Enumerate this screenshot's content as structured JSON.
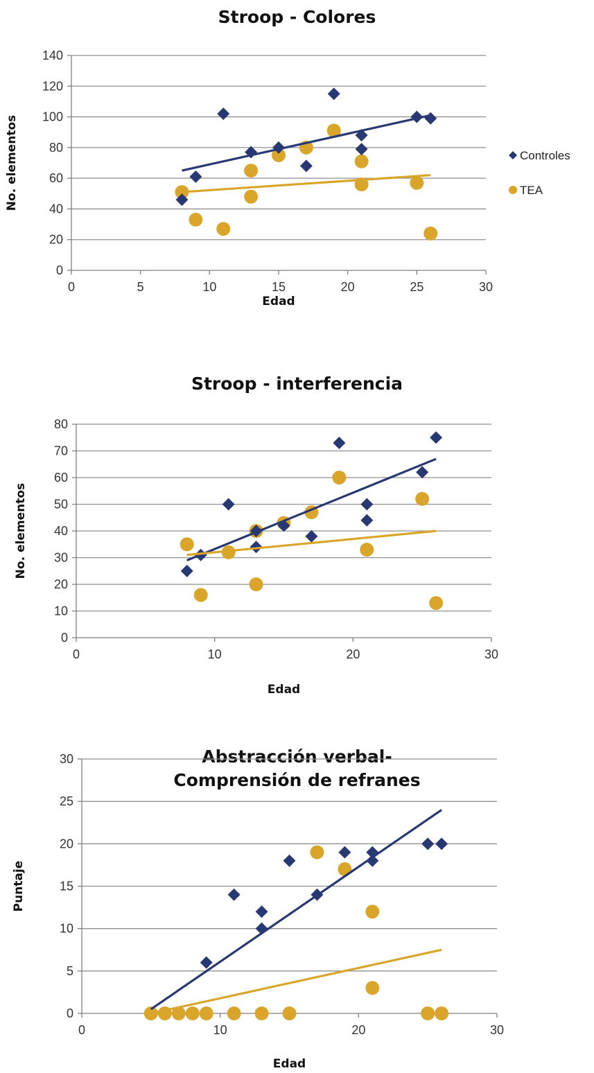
{
  "colors": {
    "controles": "#283872",
    "tea": "#D9A52A",
    "grid": "#8f8f8f"
  },
  "chart_data": [
    {
      "type": "scatter",
      "title": "Stroop - Colores",
      "xlabel": "Edad",
      "ylabel": "No. elementos",
      "xlim": [
        0,
        30
      ],
      "ylim": [
        0,
        140
      ],
      "xticks": [
        0,
        5,
        10,
        15,
        20,
        25,
        30
      ],
      "yticks": [
        0,
        20,
        40,
        60,
        80,
        100,
        120,
        140
      ],
      "grid": "horizontal",
      "legend": {
        "placement": "right",
        "entries": [
          "Controles",
          "TEA"
        ]
      },
      "series": [
        {
          "name": "Controles",
          "marker": "diamond",
          "points": [
            [
              8,
              46
            ],
            [
              9,
              61
            ],
            [
              11,
              102
            ],
            [
              13,
              77
            ],
            [
              15,
              80
            ],
            [
              17,
              68
            ],
            [
              19,
              115
            ],
            [
              21,
              88
            ],
            [
              21,
              79
            ],
            [
              25,
              100
            ],
            [
              26,
              99
            ]
          ],
          "trendline": [
            [
              8,
              65
            ],
            [
              26,
              101
            ]
          ]
        },
        {
          "name": "TEA",
          "marker": "circle",
          "points": [
            [
              8,
              51
            ],
            [
              9,
              33
            ],
            [
              11,
              27
            ],
            [
              13,
              65
            ],
            [
              13,
              48
            ],
            [
              15,
              75
            ],
            [
              17,
              80
            ],
            [
              19,
              91
            ],
            [
              21,
              71
            ],
            [
              21,
              56
            ],
            [
              25,
              57
            ],
            [
              26,
              24
            ]
          ],
          "trendline": [
            [
              8,
              51
            ],
            [
              26,
              62
            ]
          ]
        }
      ]
    },
    {
      "type": "scatter",
      "title": "Stroop - interferencia",
      "xlabel": "Edad",
      "ylabel": "No. elementos",
      "xlim": [
        0,
        30
      ],
      "ylim": [
        0,
        80
      ],
      "xticks": [
        0,
        10,
        20,
        30
      ],
      "yticks": [
        0,
        10,
        20,
        30,
        40,
        50,
        60,
        70,
        80
      ],
      "grid": "horizontal",
      "series": [
        {
          "name": "Controles",
          "marker": "diamond",
          "points": [
            [
              8,
              25
            ],
            [
              9,
              31
            ],
            [
              11,
              50
            ],
            [
              13,
              34
            ],
            [
              13,
              40
            ],
            [
              15,
              42
            ],
            [
              17,
              38
            ],
            [
              19,
              73
            ],
            [
              21,
              50
            ],
            [
              21,
              44
            ],
            [
              25,
              62
            ],
            [
              26,
              75
            ]
          ],
          "trendline": [
            [
              8,
              29
            ],
            [
              26,
              67
            ]
          ]
        },
        {
          "name": "TEA",
          "marker": "circle",
          "points": [
            [
              8,
              35
            ],
            [
              9,
              16
            ],
            [
              11,
              32
            ],
            [
              13,
              40
            ],
            [
              13,
              20
            ],
            [
              15,
              43
            ],
            [
              17,
              47
            ],
            [
              19,
              60
            ],
            [
              21,
              33
            ],
            [
              25,
              52
            ],
            [
              26,
              13
            ]
          ],
          "trendline": [
            [
              8,
              31
            ],
            [
              26,
              40
            ]
          ]
        }
      ]
    },
    {
      "type": "scatter",
      "title": "Abstracción verbal-\nComprensión de refranes",
      "xlabel": "Edad",
      "ylabel": "Puntaje",
      "xlim": [
        0,
        30
      ],
      "ylim": [
        0,
        30
      ],
      "xticks": [
        0,
        10,
        20,
        30
      ],
      "yticks": [
        0,
        5,
        10,
        15,
        20,
        25,
        30
      ],
      "grid": "horizontal",
      "series": [
        {
          "name": "Controles",
          "marker": "diamond",
          "points": [
            [
              9,
              6
            ],
            [
              11,
              14
            ],
            [
              13,
              12
            ],
            [
              13,
              10
            ],
            [
              15,
              18
            ],
            [
              17,
              14
            ],
            [
              19,
              19
            ],
            [
              21,
              19
            ],
            [
              21,
              18
            ],
            [
              25,
              20
            ],
            [
              26,
              20
            ]
          ],
          "trendline": [
            [
              5,
              0.5
            ],
            [
              26,
              24
            ]
          ]
        },
        {
          "name": "TEA",
          "marker": "circle",
          "points": [
            [
              5,
              0
            ],
            [
              6,
              0
            ],
            [
              7,
              0
            ],
            [
              8,
              0
            ],
            [
              9,
              0
            ],
            [
              11,
              0
            ],
            [
              13,
              0
            ],
            [
              15,
              0
            ],
            [
              17,
              19
            ],
            [
              19,
              17
            ],
            [
              21,
              12
            ],
            [
              21,
              3
            ],
            [
              25,
              0
            ],
            [
              26,
              0
            ]
          ],
          "trendline": [
            [
              5,
              0
            ],
            [
              26,
              7.5
            ]
          ]
        }
      ]
    }
  ]
}
